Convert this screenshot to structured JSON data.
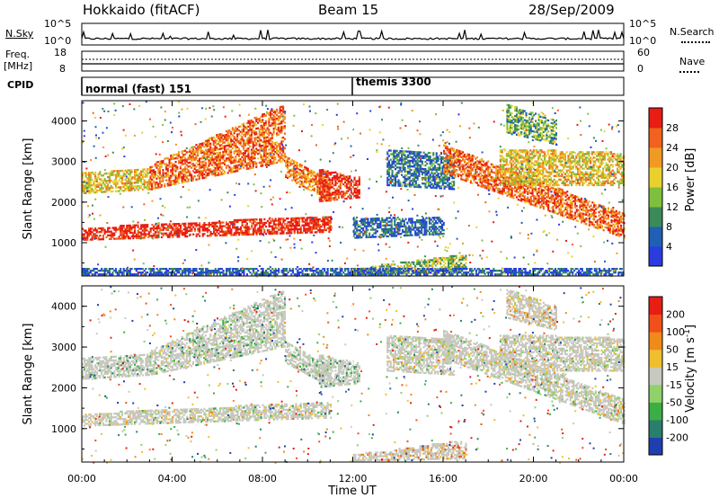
{
  "header": {
    "title": "Hokkaido (fitACF)",
    "beam": "Beam 15",
    "date": "28/Sep/2009"
  },
  "noise_panel": {
    "left_label": "N.Sky",
    "right_label": "N.Search",
    "ticks_left": [
      "10^5",
      "10^0"
    ],
    "ticks_right": [
      "10^5",
      "10^0"
    ]
  },
  "freq_panel": {
    "left_label_1": "Freq.",
    "left_label_2": "[MHz]",
    "ticks_left": [
      "18",
      "8"
    ],
    "ticks_right": [
      "60",
      "0"
    ],
    "right_label": "Nave"
  },
  "cpid_panel": {
    "label": "CPID",
    "programs": [
      {
        "name": "normal (fast)",
        "id": "151",
        "start_hour": 0
      },
      {
        "name": "themis",
        "id": "3300",
        "start_hour": 12
      }
    ]
  },
  "chart_data": [
    {
      "type": "heatmap",
      "name": "power",
      "ylabel": "Slant Range [km]",
      "xlim_hours": [
        0,
        24
      ],
      "ylim_km": [
        180,
        4500
      ],
      "yticks": [
        "1000",
        "2000",
        "3000",
        "4000"
      ],
      "colorbar_label": "Power [dB]",
      "colorbar_ticks": [
        "4",
        "8",
        "12",
        "16",
        "20",
        "24",
        "28"
      ],
      "colorbar_colors": [
        "#2a3be0",
        "#1f5fb4",
        "#3c8a5a",
        "#7fbf3e",
        "#e8d12e",
        "#f09a24",
        "#f0621d",
        "#e81d14"
      ],
      "bands": [
        {
          "t": [
            0,
            11
          ],
          "r0": [
            1050,
            1250
          ],
          "r1": [
            1350,
            1650
          ],
          "level": 0.95
        },
        {
          "t": [
            0,
            3
          ],
          "r0": [
            2200,
            2300
          ],
          "r1": [
            2700,
            2800
          ],
          "level": 0.6
        },
        {
          "t": [
            3,
            9
          ],
          "r0": [
            2300,
            3000
          ],
          "r1": [
            2900,
            4400
          ],
          "level": 0.8
        },
        {
          "t": [
            9,
            11
          ],
          "r0": [
            2600,
            2000
          ],
          "r1": [
            3100,
            2500
          ],
          "level": 0.75
        },
        {
          "t": [
            10.5,
            12.3
          ],
          "r0": [
            2000,
            2100
          ],
          "r1": [
            2800,
            2600
          ],
          "level": 0.9
        },
        {
          "t": [
            12,
            17
          ],
          "r0": [
            200,
            250
          ],
          "r1": [
            350,
            700
          ],
          "level": 0.45
        },
        {
          "t": [
            12,
            16
          ],
          "r0": [
            1100,
            1200
          ],
          "r1": [
            1600,
            1600
          ],
          "level": 0.2
        },
        {
          "t": [
            13.5,
            16.5
          ],
          "r0": [
            2400,
            2300
          ],
          "r1": [
            3300,
            3200
          ],
          "level": 0.25
        },
        {
          "t": [
            16,
            24
          ],
          "r0": [
            2700,
            1100
          ],
          "r1": [
            3400,
            1700
          ],
          "level": 0.8
        },
        {
          "t": [
            18.5,
            24
          ],
          "r0": [
            2400,
            2400
          ],
          "r1": [
            3300,
            3200
          ],
          "level": 0.6
        },
        {
          "t": [
            18.8,
            21
          ],
          "r0": [
            3700,
            3400
          ],
          "r1": [
            4400,
            4000
          ],
          "level": 0.4
        },
        {
          "t": [
            0,
            24
          ],
          "r0": [
            200,
            200
          ],
          "r1": [
            380,
            380
          ],
          "level": 0.15
        }
      ]
    },
    {
      "type": "heatmap",
      "name": "velocity",
      "ylabel": "Slant Range [km]",
      "xlabel": "Time UT",
      "xticks": [
        "00:00",
        "04:00",
        "08:00",
        "12:00",
        "16:00",
        "20:00",
        "00:00"
      ],
      "xlim_hours": [
        0,
        24
      ],
      "ylim_km": [
        180,
        4500
      ],
      "yticks": [
        "1000",
        "2000",
        "3000",
        "4000"
      ],
      "colorbar_label": "Velocity [m s^-1]",
      "colorbar_ticks": [
        "200",
        "100",
        "50",
        "15",
        "-15",
        "-50",
        "-100",
        "-200"
      ],
      "colorbar_colors": [
        "#1f3fb0",
        "#2a7e6c",
        "#3cae46",
        "#8fd16a",
        "#c8c8c0",
        "#efbf2e",
        "#f08a1a",
        "#f0501a",
        "#e81d14"
      ],
      "bands": [
        {
          "t": [
            0,
            11
          ],
          "r0": [
            1050,
            1250
          ],
          "r1": [
            1350,
            1650
          ],
          "level": 0.5
        },
        {
          "t": [
            0,
            3
          ],
          "r0": [
            2200,
            2300
          ],
          "r1": [
            2700,
            2800
          ],
          "level": 0.35
        },
        {
          "t": [
            3,
            9
          ],
          "r0": [
            2300,
            3000
          ],
          "r1": [
            2900,
            4400
          ],
          "level": 0.4
        },
        {
          "t": [
            9,
            11
          ],
          "r0": [
            2600,
            2000
          ],
          "r1": [
            3100,
            2500
          ],
          "level": 0.4
        },
        {
          "t": [
            10.5,
            12.3
          ],
          "r0": [
            2000,
            2100
          ],
          "r1": [
            2800,
            2600
          ],
          "level": 0.35
        },
        {
          "t": [
            12,
            17
          ],
          "r0": [
            200,
            250
          ],
          "r1": [
            350,
            700
          ],
          "level": 0.7
        },
        {
          "t": [
            13.5,
            16.5
          ],
          "r0": [
            2400,
            2300
          ],
          "r1": [
            3300,
            3200
          ],
          "level": 0.5
        },
        {
          "t": [
            16,
            24
          ],
          "r0": [
            2700,
            1100
          ],
          "r1": [
            3400,
            1700
          ],
          "level": 0.5
        },
        {
          "t": [
            18.5,
            24
          ],
          "r0": [
            2400,
            2400
          ],
          "r1": [
            3300,
            3200
          ],
          "level": 0.5
        },
        {
          "t": [
            18.8,
            21
          ],
          "r0": [
            3700,
            3400
          ],
          "r1": [
            4400,
            4000
          ],
          "level": 0.6
        }
      ]
    }
  ]
}
